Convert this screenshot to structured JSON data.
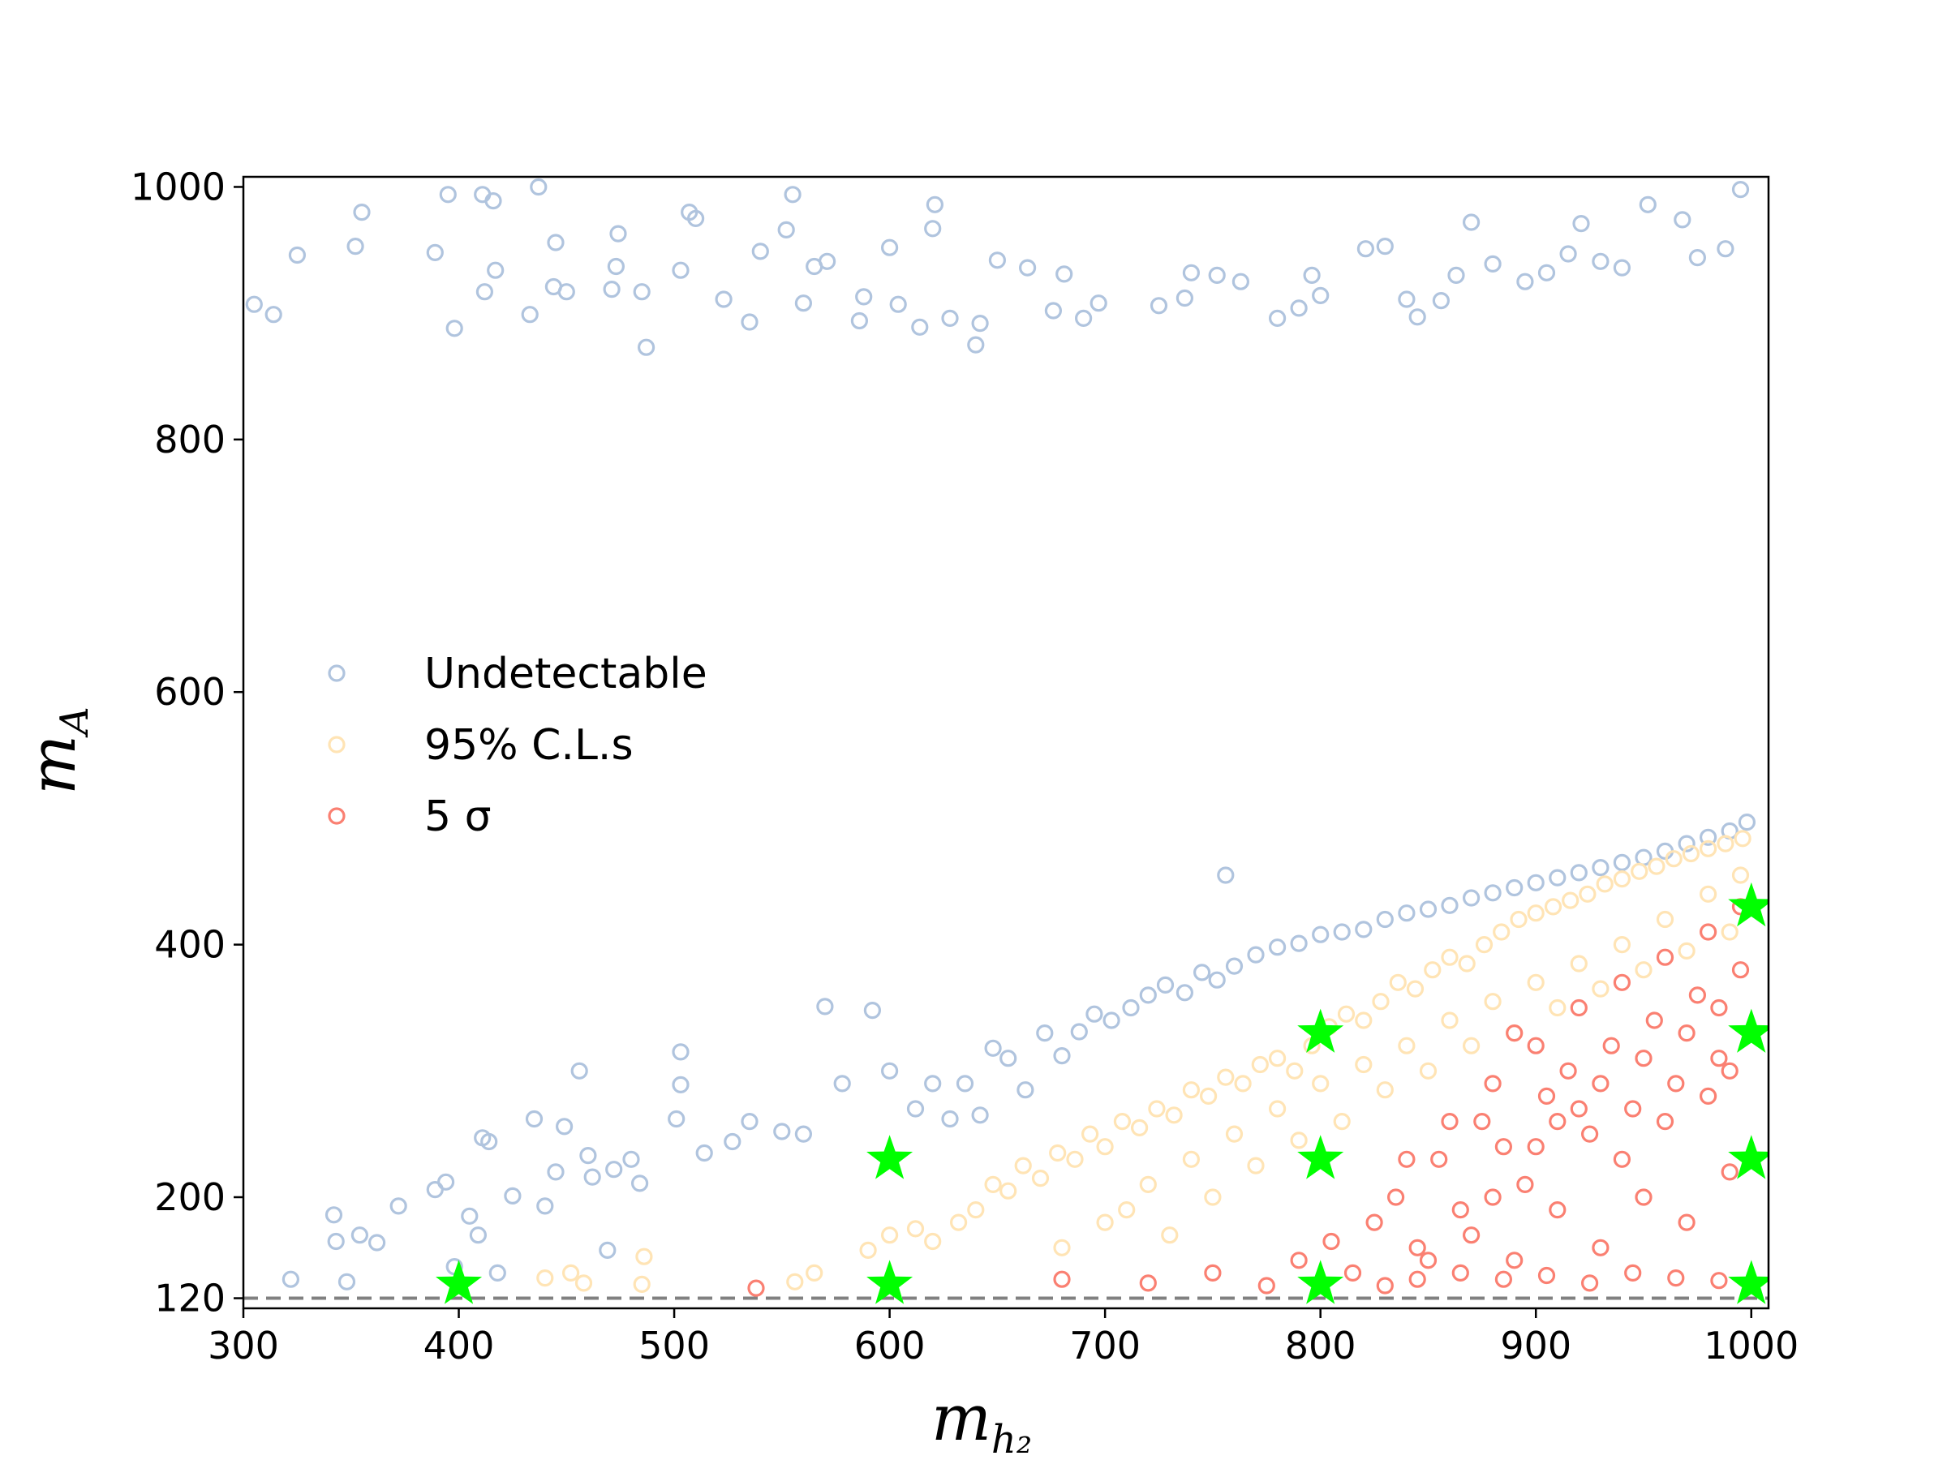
{
  "chart_data": {
    "type": "scatter",
    "title": "",
    "xlabel": "m",
    "xlabel_sub": "h₂",
    "ylabel": "m",
    "ylabel_sub": "A",
    "xlim": [
      300,
      1008
    ],
    "ylim": [
      112,
      1008
    ],
    "x_ticks": [
      300,
      400,
      500,
      600,
      700,
      800,
      900,
      1000
    ],
    "y_ticks": [
      120,
      200,
      400,
      600,
      800,
      1000
    ],
    "grid": false,
    "legend_position": "center-left",
    "reference_line": {
      "y": 120,
      "style": "dashed",
      "color": "#808080"
    },
    "series": [
      {
        "name": "Undetectable",
        "marker": "open-circle",
        "color": "#b0c4de",
        "points": [
          [
            305,
            907
          ],
          [
            314,
            899
          ],
          [
            325,
            946
          ],
          [
            352,
            953
          ],
          [
            355,
            980
          ],
          [
            389,
            948
          ],
          [
            395,
            994
          ],
          [
            398,
            888
          ],
          [
            411,
            994
          ],
          [
            412,
            917
          ],
          [
            416,
            989
          ],
          [
            417,
            934
          ],
          [
            433,
            899
          ],
          [
            437,
            1000
          ],
          [
            444,
            921
          ],
          [
            445,
            956
          ],
          [
            450,
            917
          ],
          [
            471,
            919
          ],
          [
            473,
            937
          ],
          [
            474,
            963
          ],
          [
            485,
            917
          ],
          [
            487,
            873
          ],
          [
            503,
            934
          ],
          [
            507,
            980
          ],
          [
            510,
            975
          ],
          [
            523,
            911
          ],
          [
            535,
            893
          ],
          [
            540,
            949
          ],
          [
            552,
            966
          ],
          [
            555,
            994
          ],
          [
            560,
            908
          ],
          [
            565,
            937
          ],
          [
            571,
            941
          ],
          [
            586,
            894
          ],
          [
            588,
            913
          ],
          [
            600,
            952
          ],
          [
            604,
            907
          ],
          [
            614,
            889
          ],
          [
            620,
            967
          ],
          [
            621,
            986
          ],
          [
            628,
            896
          ],
          [
            640,
            875
          ],
          [
            642,
            892
          ],
          [
            650,
            942
          ],
          [
            664,
            936
          ],
          [
            676,
            902
          ],
          [
            681,
            931
          ],
          [
            690,
            896
          ],
          [
            697,
            908
          ],
          [
            725,
            906
          ],
          [
            737,
            912
          ],
          [
            740,
            932
          ],
          [
            752,
            930
          ],
          [
            763,
            925
          ],
          [
            780,
            896
          ],
          [
            790,
            904
          ],
          [
            796,
            930
          ],
          [
            800,
            914
          ],
          [
            821,
            951
          ],
          [
            830,
            953
          ],
          [
            840,
            911
          ],
          [
            845,
            897
          ],
          [
            856,
            910
          ],
          [
            863,
            930
          ],
          [
            870,
            972
          ],
          [
            880,
            939
          ],
          [
            895,
            925
          ],
          [
            905,
            932
          ],
          [
            915,
            947
          ],
          [
            921,
            971
          ],
          [
            930,
            941
          ],
          [
            940,
            936
          ],
          [
            952,
            986
          ],
          [
            968,
            974
          ],
          [
            975,
            944
          ],
          [
            988,
            951
          ],
          [
            995,
            998
          ],
          [
            322,
            135
          ],
          [
            342,
            186
          ],
          [
            343,
            165
          ],
          [
            348,
            133
          ],
          [
            354,
            170
          ],
          [
            362,
            164
          ],
          [
            372,
            193
          ],
          [
            389,
            206
          ],
          [
            394,
            212
          ],
          [
            398,
            145
          ],
          [
            405,
            185
          ],
          [
            409,
            170
          ],
          [
            411,
            247
          ],
          [
            414,
            244
          ],
          [
            418,
            140
          ],
          [
            425,
            201
          ],
          [
            435,
            262
          ],
          [
            440,
            193
          ],
          [
            445,
            220
          ],
          [
            449,
            256
          ],
          [
            456,
            300
          ],
          [
            460,
            233
          ],
          [
            462,
            216
          ],
          [
            469,
            158
          ],
          [
            472,
            222
          ],
          [
            480,
            230
          ],
          [
            484,
            211
          ],
          [
            501,
            262
          ],
          [
            503,
            315
          ],
          [
            503,
            289
          ],
          [
            514,
            235
          ],
          [
            527,
            244
          ],
          [
            535,
            260
          ],
          [
            550,
            252
          ],
          [
            560,
            250
          ],
          [
            570,
            351
          ],
          [
            578,
            290
          ],
          [
            592,
            348
          ],
          [
            600,
            300
          ],
          [
            612,
            270
          ],
          [
            620,
            290
          ],
          [
            628,
            262
          ],
          [
            635,
            290
          ],
          [
            642,
            265
          ],
          [
            648,
            318
          ],
          [
            655,
            310
          ],
          [
            663,
            285
          ],
          [
            672,
            330
          ],
          [
            680,
            312
          ],
          [
            688,
            331
          ],
          [
            695,
            345
          ],
          [
            703,
            340
          ],
          [
            712,
            350
          ],
          [
            720,
            360
          ],
          [
            728,
            368
          ],
          [
            737,
            362
          ],
          [
            745,
            378
          ],
          [
            752,
            372
          ],
          [
            756,
            455
          ],
          [
            760,
            383
          ],
          [
            770,
            392
          ],
          [
            780,
            398
          ],
          [
            790,
            401
          ],
          [
            800,
            408
          ],
          [
            810,
            410
          ],
          [
            820,
            412
          ],
          [
            830,
            420
          ],
          [
            840,
            425
          ],
          [
            850,
            428
          ],
          [
            860,
            431
          ],
          [
            870,
            437
          ],
          [
            880,
            441
          ],
          [
            890,
            445
          ],
          [
            900,
            449
          ],
          [
            910,
            453
          ],
          [
            920,
            457
          ],
          [
            930,
            461
          ],
          [
            940,
            465
          ],
          [
            950,
            469
          ],
          [
            960,
            474
          ],
          [
            970,
            480
          ],
          [
            980,
            485
          ],
          [
            990,
            490
          ],
          [
            998,
            497
          ]
        ]
      },
      {
        "name": "95% C.L.s",
        "marker": "open-circle",
        "color": "#ffe4b5",
        "points": [
          [
            440,
            136
          ],
          [
            452,
            140
          ],
          [
            458,
            132
          ],
          [
            485,
            131
          ],
          [
            486,
            153
          ],
          [
            556,
            133
          ],
          [
            565,
            140
          ],
          [
            590,
            158
          ],
          [
            600,
            170
          ],
          [
            612,
            175
          ],
          [
            620,
            165
          ],
          [
            632,
            180
          ],
          [
            640,
            190
          ],
          [
            648,
            210
          ],
          [
            655,
            205
          ],
          [
            662,
            225
          ],
          [
            670,
            215
          ],
          [
            678,
            235
          ],
          [
            686,
            230
          ],
          [
            693,
            250
          ],
          [
            700,
            240
          ],
          [
            708,
            260
          ],
          [
            716,
            255
          ],
          [
            724,
            270
          ],
          [
            732,
            265
          ],
          [
            740,
            285
          ],
          [
            748,
            280
          ],
          [
            756,
            295
          ],
          [
            764,
            290
          ],
          [
            772,
            305
          ],
          [
            780,
            310
          ],
          [
            788,
            300
          ],
          [
            796,
            320
          ],
          [
            804,
            335
          ],
          [
            812,
            345
          ],
          [
            820,
            340
          ],
          [
            828,
            355
          ],
          [
            836,
            370
          ],
          [
            844,
            365
          ],
          [
            852,
            380
          ],
          [
            860,
            390
          ],
          [
            868,
            385
          ],
          [
            876,
            400
          ],
          [
            884,
            410
          ],
          [
            892,
            420
          ],
          [
            900,
            425
          ],
          [
            908,
            430
          ],
          [
            916,
            435
          ],
          [
            924,
            440
          ],
          [
            932,
            448
          ],
          [
            940,
            452
          ],
          [
            948,
            458
          ],
          [
            956,
            462
          ],
          [
            964,
            468
          ],
          [
            972,
            472
          ],
          [
            980,
            476
          ],
          [
            988,
            480
          ],
          [
            996,
            484
          ],
          [
            700,
            180
          ],
          [
            720,
            210
          ],
          [
            740,
            230
          ],
          [
            760,
            250
          ],
          [
            780,
            270
          ],
          [
            800,
            290
          ],
          [
            820,
            305
          ],
          [
            840,
            320
          ],
          [
            860,
            340
          ],
          [
            880,
            355
          ],
          [
            900,
            370
          ],
          [
            920,
            385
          ],
          [
            940,
            400
          ],
          [
            960,
            420
          ],
          [
            980,
            440
          ],
          [
            995,
            455
          ],
          [
            680,
            160
          ],
          [
            710,
            190
          ],
          [
            730,
            170
          ],
          [
            750,
            200
          ],
          [
            770,
            225
          ],
          [
            790,
            245
          ],
          [
            810,
            260
          ],
          [
            830,
            285
          ],
          [
            850,
            300
          ],
          [
            870,
            320
          ],
          [
            890,
            330
          ],
          [
            910,
            350
          ],
          [
            930,
            365
          ],
          [
            950,
            380
          ],
          [
            970,
            395
          ],
          [
            990,
            410
          ]
        ]
      },
      {
        "name": "5 σ",
        "marker": "open-circle",
        "color": "#fa8072",
        "points": [
          [
            538,
            128
          ],
          [
            680,
            135
          ],
          [
            720,
            132
          ],
          [
            750,
            140
          ],
          [
            775,
            130
          ],
          [
            790,
            150
          ],
          [
            805,
            165
          ],
          [
            815,
            140
          ],
          [
            825,
            180
          ],
          [
            835,
            200
          ],
          [
            845,
            160
          ],
          [
            855,
            230
          ],
          [
            865,
            190
          ],
          [
            875,
            260
          ],
          [
            885,
            240
          ],
          [
            895,
            210
          ],
          [
            905,
            280
          ],
          [
            915,
            300
          ],
          [
            925,
            250
          ],
          [
            935,
            320
          ],
          [
            945,
            270
          ],
          [
            955,
            340
          ],
          [
            965,
            290
          ],
          [
            975,
            360
          ],
          [
            985,
            310
          ],
          [
            995,
            380
          ],
          [
            830,
            130
          ],
          [
            850,
            150
          ],
          [
            870,
            170
          ],
          [
            890,
            150
          ],
          [
            910,
            190
          ],
          [
            930,
            160
          ],
          [
            950,
            200
          ],
          [
            970,
            180
          ],
          [
            990,
            220
          ],
          [
            840,
            230
          ],
          [
            860,
            260
          ],
          [
            880,
            290
          ],
          [
            900,
            320
          ],
          [
            920,
            350
          ],
          [
            940,
            370
          ],
          [
            960,
            390
          ],
          [
            980,
            410
          ],
          [
            995,
            430
          ],
          [
            845,
            135
          ],
          [
            865,
            140
          ],
          [
            885,
            135
          ],
          [
            905,
            138
          ],
          [
            925,
            132
          ],
          [
            945,
            140
          ],
          [
            965,
            136
          ],
          [
            985,
            134
          ],
          [
            880,
            200
          ],
          [
            900,
            240
          ],
          [
            920,
            270
          ],
          [
            940,
            230
          ],
          [
            960,
            260
          ],
          [
            980,
            280
          ],
          [
            990,
            300
          ],
          [
            890,
            330
          ],
          [
            910,
            260
          ],
          [
            930,
            290
          ],
          [
            950,
            310
          ],
          [
            970,
            330
          ],
          [
            985,
            350
          ]
        ]
      }
    ],
    "highlight_points": {
      "marker": "star",
      "color": "#00ff00",
      "points": [
        [
          400,
          131
        ],
        [
          600,
          131
        ],
        [
          600,
          230
        ],
        [
          800,
          131
        ],
        [
          800,
          230
        ],
        [
          800,
          330
        ],
        [
          1000,
          131
        ],
        [
          1000,
          230
        ],
        [
          1000,
          330
        ],
        [
          1000,
          430
        ]
      ]
    }
  }
}
